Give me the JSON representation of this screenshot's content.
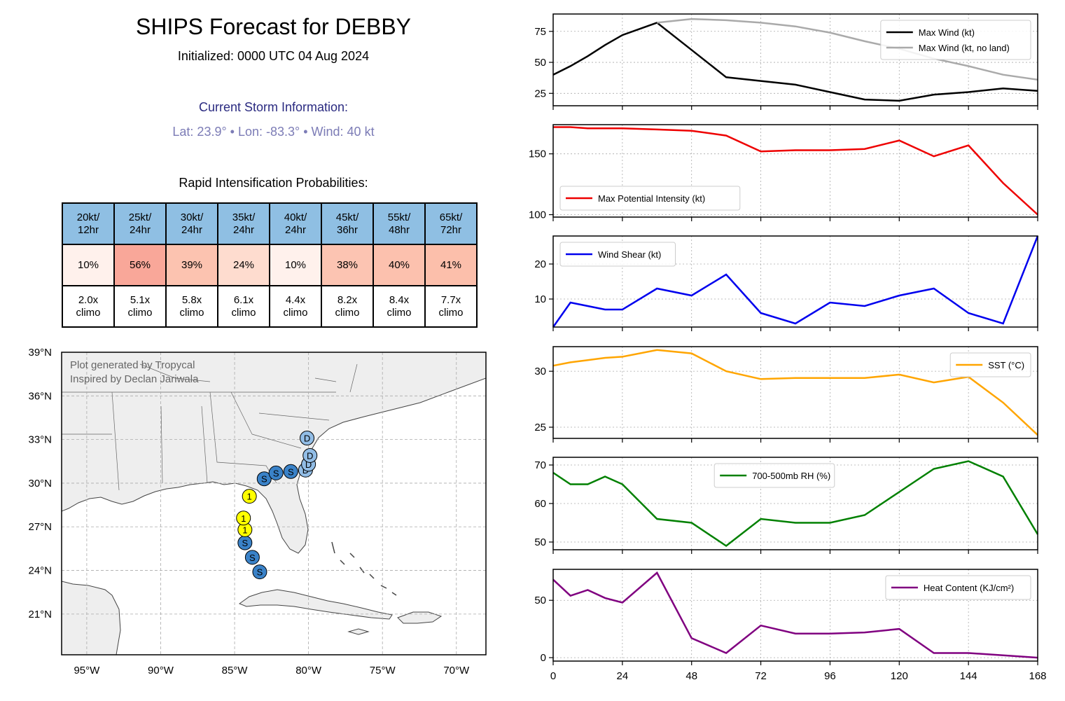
{
  "header": {
    "title": "SHIPS Forecast for DEBBY",
    "initialized": "Initialized: 0000 UTC 04 Aug 2024",
    "current_heading": "Current Storm Information:",
    "current_info": "Lat: 23.9°  • Lon: -83.3°  • Wind: 40 kt",
    "ri_heading": "Rapid Intensification Probabilities:"
  },
  "ri_table": {
    "headers": [
      [
        "20kt/",
        "12hr"
      ],
      [
        "25kt/",
        "24hr"
      ],
      [
        "30kt/",
        "24hr"
      ],
      [
        "35kt/",
        "24hr"
      ],
      [
        "40kt/",
        "24hr"
      ],
      [
        "45kt/",
        "36hr"
      ],
      [
        "55kt/",
        "48hr"
      ],
      [
        "65kt/",
        "72hr"
      ]
    ],
    "probabilities": [
      "10%",
      "56%",
      "39%",
      "24%",
      "10%",
      "38%",
      "40%",
      "41%"
    ],
    "prob_colors": [
      "#fff1ec",
      "#f9a799",
      "#fcc3b0",
      "#fedccf",
      "#fff1ec",
      "#fcc4b2",
      "#fcc1ae",
      "#fcbfab"
    ],
    "climo": [
      [
        "2.0x",
        "climo"
      ],
      [
        "5.1x",
        "climo"
      ],
      [
        "5.8x",
        "climo"
      ],
      [
        "6.1x",
        "climo"
      ],
      [
        "4.4x",
        "climo"
      ],
      [
        "8.2x",
        "climo"
      ],
      [
        "8.4x",
        "climo"
      ],
      [
        "7.7x",
        "climo"
      ]
    ]
  },
  "map": {
    "credit_line1": "Plot generated by Tropycal",
    "credit_line2": "Inspired by Declan Jariwala",
    "lat_labels": [
      "39°N",
      "36°N",
      "33°N",
      "30°N",
      "27°N",
      "24°N",
      "21°N"
    ],
    "lon_labels": [
      "95°W",
      "90°W",
      "85°W",
      "80°W",
      "75°W",
      "70°W"
    ],
    "land_color": "#eeeeee",
    "track_points": [
      {
        "lat": 23.9,
        "lon": -83.3,
        "label": "S",
        "color": "#3a82c8"
      },
      {
        "lat": 24.9,
        "lon": -83.8,
        "label": "S",
        "color": "#3a82c8"
      },
      {
        "lat": 25.9,
        "lon": -84.3,
        "label": "S",
        "color": "#3a82c8"
      },
      {
        "lat": 26.8,
        "lon": -84.3,
        "label": "1",
        "color": "#ffff00"
      },
      {
        "lat": 27.6,
        "lon": -84.4,
        "label": "1",
        "color": "#ffff00"
      },
      {
        "lat": 29.1,
        "lon": -84.0,
        "label": "1",
        "color": "#ffff00"
      },
      {
        "lat": 30.3,
        "lon": -83.0,
        "label": "S",
        "color": "#3a82c8"
      },
      {
        "lat": 30.7,
        "lon": -82.2,
        "label": "S",
        "color": "#3a82c8"
      },
      {
        "lat": 30.8,
        "lon": -81.2,
        "label": "S",
        "color": "#3a82c8"
      },
      {
        "lat": 30.9,
        "lon": -80.2,
        "label": "D",
        "color": "#92bde6"
      },
      {
        "lat": 31.3,
        "lon": -80.0,
        "label": "D",
        "color": "#92bde6"
      },
      {
        "lat": 31.9,
        "lon": -79.9,
        "label": "D",
        "color": "#92bde6"
      },
      {
        "lat": 33.1,
        "lon": -80.1,
        "label": "D",
        "color": "#92bde6"
      }
    ]
  },
  "chart_data": [
    {
      "type": "line",
      "x": [
        0,
        6,
        12,
        18,
        24,
        36,
        48,
        60,
        72,
        84,
        96,
        108,
        120,
        132,
        144,
        156,
        168
      ],
      "series": [
        {
          "name": "Max Wind (kt)",
          "color": "#000000",
          "values": [
            40,
            47,
            55,
            64,
            72,
            82,
            60,
            38,
            35,
            32,
            26,
            20,
            19,
            24,
            26,
            29,
            27
          ]
        },
        {
          "name": "Max Wind (kt, no land)",
          "color": "#aaaaaa",
          "values": [
            null,
            null,
            null,
            null,
            null,
            82,
            85,
            84,
            82,
            79,
            74,
            67,
            61,
            53,
            47,
            40,
            36
          ]
        }
      ],
      "ylim": [
        15,
        89
      ],
      "yticks": [
        25,
        50,
        75
      ],
      "xlim": [
        0,
        168
      ],
      "legend": "top-right",
      "grid": true
    },
    {
      "type": "line",
      "x": [
        0,
        6,
        12,
        18,
        24,
        36,
        48,
        60,
        72,
        84,
        96,
        108,
        120,
        132,
        144,
        156,
        168
      ],
      "series": [
        {
          "name": "Max Potential Intensity (kt)",
          "color": "#ee0000",
          "values": [
            172,
            172,
            171,
            171,
            171,
            170,
            169,
            165,
            152,
            153,
            153,
            154,
            161,
            148,
            157,
            126,
            100
          ]
        }
      ],
      "ylim": [
        98,
        174
      ],
      "yticks": [
        100,
        150
      ],
      "xlim": [
        0,
        168
      ],
      "legend": "bottom-left",
      "grid": true
    },
    {
      "type": "line",
      "x": [
        0,
        6,
        12,
        18,
        24,
        36,
        48,
        60,
        72,
        84,
        96,
        108,
        120,
        132,
        144,
        156,
        168
      ],
      "series": [
        {
          "name": "Wind Shear (kt)",
          "color": "#0000ee",
          "values": [
            2,
            9,
            8,
            7,
            7,
            13,
            11,
            17,
            6,
            3,
            9,
            8,
            11,
            13,
            6,
            3,
            28
          ]
        }
      ],
      "ylim": [
        2,
        28
      ],
      "yticks": [
        10,
        20
      ],
      "xlim": [
        0,
        168
      ],
      "legend": "top-left",
      "grid": true
    },
    {
      "type": "line",
      "x": [
        0,
        6,
        12,
        18,
        24,
        36,
        48,
        60,
        72,
        84,
        96,
        108,
        120,
        132,
        144,
        156,
        168
      ],
      "series": [
        {
          "name": "SST (°C)",
          "color": "#ffa500",
          "values": [
            30.5,
            30.8,
            31.0,
            31.2,
            31.3,
            31.9,
            31.6,
            30.0,
            29.3,
            29.4,
            29.4,
            29.4,
            29.7,
            29.0,
            29.5,
            27.2,
            24.3
          ]
        }
      ],
      "ylim": [
        24.0,
        32.2
      ],
      "yticks": [
        25,
        30
      ],
      "xlim": [
        0,
        168
      ],
      "legend": "top-right",
      "grid": true
    },
    {
      "type": "line",
      "x": [
        0,
        6,
        12,
        18,
        24,
        36,
        48,
        60,
        72,
        84,
        96,
        108,
        120,
        132,
        144,
        156,
        168
      ],
      "series": [
        {
          "name": "700-500mb RH (%)",
          "color": "#008000",
          "values": [
            68,
            65,
            65,
            67,
            65,
            56,
            55,
            49,
            56,
            55,
            55,
            57,
            63,
            69,
            71,
            67,
            52
          ]
        }
      ],
      "ylim": [
        48,
        72
      ],
      "yticks": [
        50,
        60,
        70
      ],
      "xlim": [
        0,
        168
      ],
      "legend": "top-center",
      "grid": true
    },
    {
      "type": "line",
      "x": [
        0,
        6,
        12,
        18,
        24,
        36,
        48,
        60,
        72,
        84,
        96,
        108,
        120,
        132,
        144,
        156,
        168
      ],
      "series": [
        {
          "name": "Heat Content (KJ/cm²)",
          "color": "#800080",
          "values": [
            68,
            54,
            59,
            52,
            48,
            74,
            17,
            4,
            28,
            21,
            21,
            22,
            25,
            4,
            4,
            2,
            0
          ]
        }
      ],
      "ylim": [
        -3,
        77
      ],
      "yticks": [
        0,
        50
      ],
      "xlim": [
        0,
        168
      ],
      "xticks": [
        0,
        24,
        48,
        72,
        96,
        120,
        144,
        168
      ],
      "legend": "top-right",
      "grid": true
    }
  ]
}
